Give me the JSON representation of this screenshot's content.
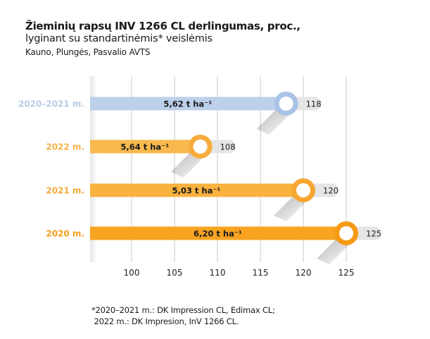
{
  "header": {
    "title": "Žieminių rapsų INV 1266 CL derlingumas, proc.,",
    "subtitle": "lyginant su standartinėmis* veislėmis",
    "stations": "Kauno, Plungės, Pasvalio AVTS"
  },
  "chart_data": {
    "type": "bar",
    "orientation": "horizontal",
    "title": "Žieminių rapsų INV 1266 CL derlingumas, proc., lyginant su standartinėmis* veislėmis",
    "xlabel": "",
    "ylabel": "",
    "xlim": [
      95,
      127
    ],
    "xticks": [
      100,
      105,
      110,
      115,
      120,
      125
    ],
    "grid": true,
    "categories": [
      "2020–2021 m.",
      "2022 m.",
      "2021 m.",
      "2020 m."
    ],
    "values": [
      118,
      108,
      120,
      125
    ],
    "yield_labels": [
      "5,62 t ha⁻¹",
      "5,64 t ha⁻¹",
      "5,03 t ha⁻¹",
      "6,20 t ha⁻¹"
    ],
    "colors": [
      "#bcd0ea",
      "#f9b94e",
      "#f9b23e",
      "#f8a321"
    ],
    "label_colors": [
      "#b8cbe6",
      "#f5b246",
      "#f4ab36",
      "#f29e1c"
    ],
    "knob_ring_colors": [
      "#a9c3e6",
      "#f7ad3c",
      "#f7a631",
      "#f69a15"
    ],
    "value_badge_color": "#e5e5e5",
    "grid_color": "#dcdcdc"
  },
  "footnote": {
    "line1": "*2020–2021 m.: DK Impression CL, Edimax CL;",
    "line2": " 2022 m.: DK Impresion, InV 1266 CL."
  }
}
